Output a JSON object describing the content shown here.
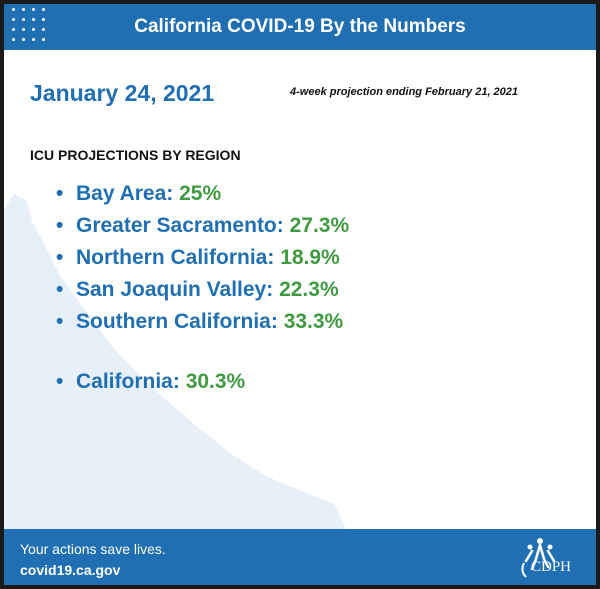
{
  "header": {
    "title": "California COVID-19 By the Numbers"
  },
  "date": "January 24, 2021",
  "projection_note": "4-week projection ending February 21, 2021",
  "section_title": "ICU PROJECTIONS BY REGION",
  "regions": [
    {
      "label": "Bay Area:",
      "value": "25%"
    },
    {
      "label": "Greater Sacramento:",
      "value": "27.3%"
    },
    {
      "label": "Northern California:",
      "value": "18.9%"
    },
    {
      "label": "San Joaquin Valley:",
      "value": "22.3%"
    },
    {
      "label": "Southern California:",
      "value": "33.3%"
    }
  ],
  "state_total": {
    "label": "California:",
    "value": "30.3%"
  },
  "footer": {
    "slogan": "Your actions save lives.",
    "url": "covid19.ca.gov",
    "logo_text": "CDPH"
  },
  "colors": {
    "brand_blue": "#1f6fb2",
    "value_green": "#3f9a41",
    "map_fill": "#e7f0f8"
  },
  "icons": {
    "bullet": "•"
  }
}
